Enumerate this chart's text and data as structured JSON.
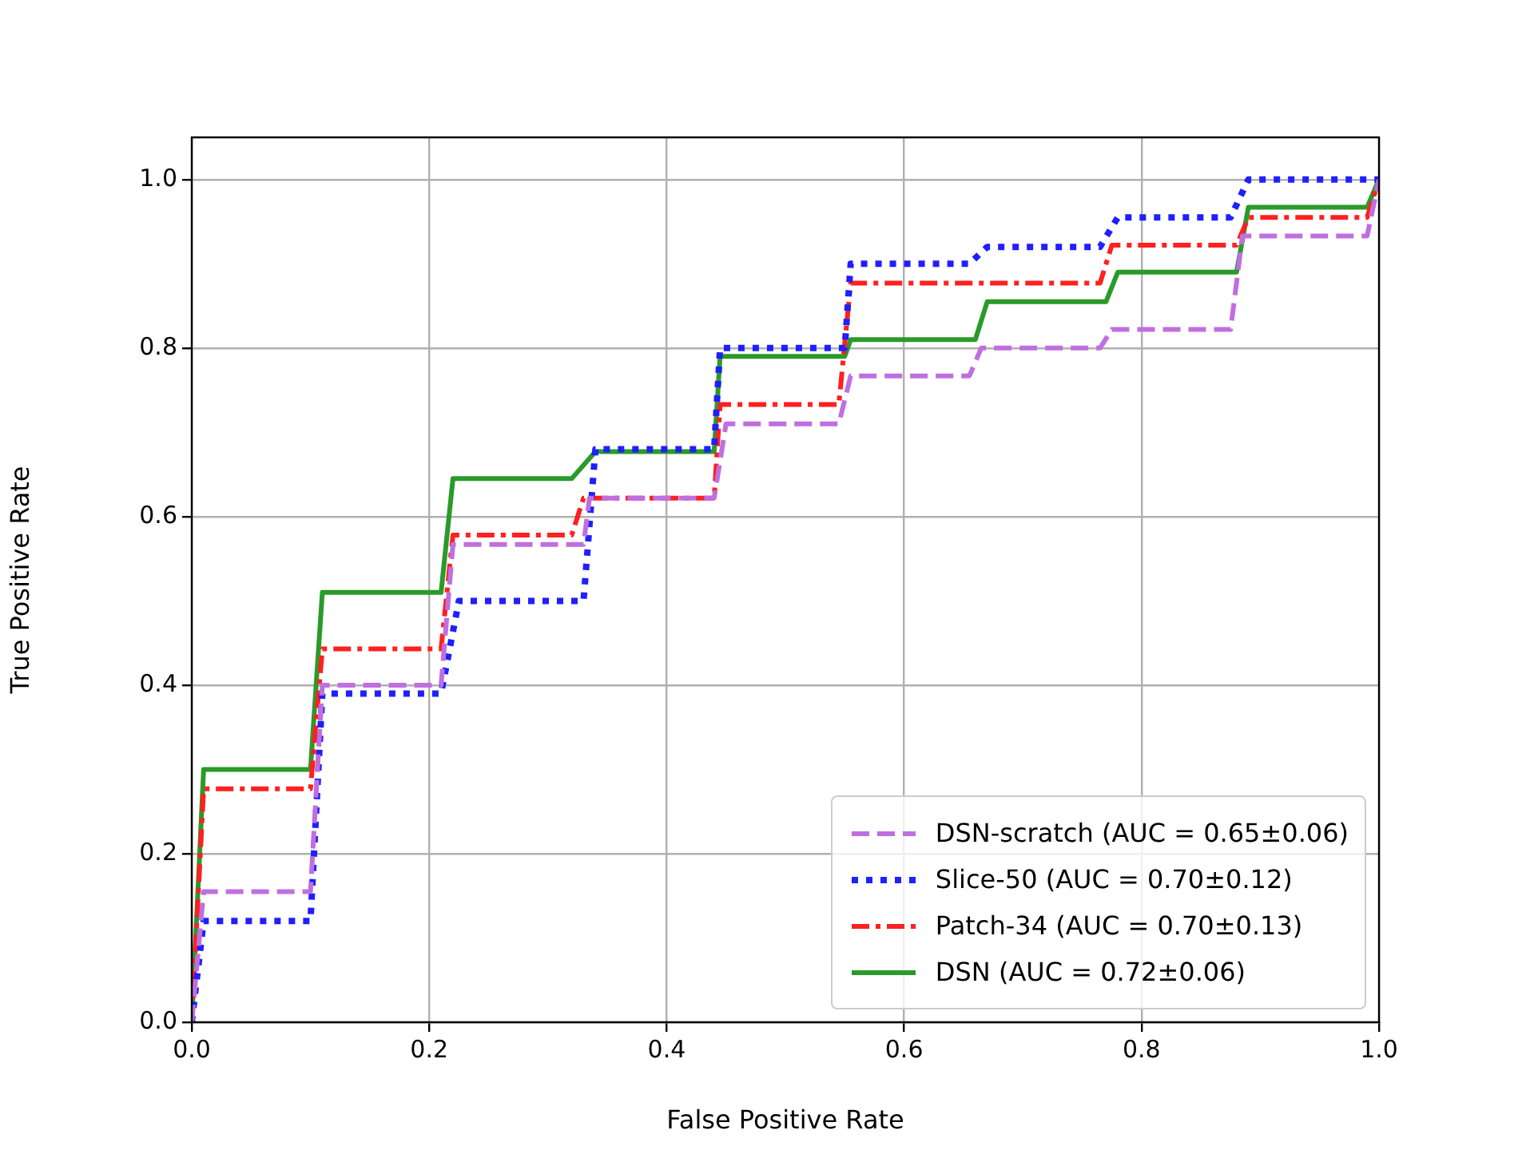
{
  "chart_data": {
    "type": "line",
    "xlabel": "False Positive Rate",
    "ylabel": "True Positive Rate",
    "xlim": [
      0,
      1
    ],
    "ylim": [
      0,
      1.05
    ],
    "xticks": [
      {
        "value": 0,
        "label": "0.0"
      },
      {
        "value": 0.2,
        "label": "0.2"
      },
      {
        "value": 0.4,
        "label": "0.4"
      },
      {
        "value": 0.6,
        "label": "0.6"
      },
      {
        "value": 0.8,
        "label": "0.8"
      },
      {
        "value": 1,
        "label": "1.0"
      }
    ],
    "yticks": [
      {
        "value": 0,
        "label": "0.0"
      },
      {
        "value": 0.2,
        "label": "0.2"
      },
      {
        "value": 0.4,
        "label": "0.4"
      },
      {
        "value": 0.6,
        "label": "0.6"
      },
      {
        "value": 0.8,
        "label": "0.8"
      },
      {
        "value": 1,
        "label": "1.0"
      }
    ],
    "grid": true,
    "legend": "bottom right",
    "marker": "none",
    "series": [
      {
        "name": "DSN-scratch (AUC = 0.65±0.06)",
        "color": "#bf6fdf",
        "line_style": "dashed",
        "x": [
          0,
          0.01,
          0.1,
          0.11,
          0.21,
          0.22,
          0.33,
          0.335,
          0.44,
          0.45,
          0.545,
          0.555,
          0.655,
          0.665,
          0.765,
          0.775,
          0.875,
          0.885,
          0.99,
          1
        ],
        "values": [
          0,
          0.155,
          0.155,
          0.4,
          0.4,
          0.567,
          0.567,
          0.622,
          0.622,
          0.71,
          0.71,
          0.767,
          0.767,
          0.8,
          0.8,
          0.822,
          0.822,
          0.933,
          0.933,
          1
        ]
      },
      {
        "name": "Slice-50 (AUC = 0.70±0.12)",
        "color": "#1f1fff",
        "line_style": "dotted",
        "x": [
          0,
          0.01,
          0.1,
          0.11,
          0.21,
          0.225,
          0.33,
          0.34,
          0.44,
          0.445,
          0.55,
          0.555,
          0.655,
          0.67,
          0.765,
          0.78,
          0.875,
          0.89,
          1
        ],
        "values": [
          0,
          0.12,
          0.12,
          0.39,
          0.39,
          0.5,
          0.5,
          0.68,
          0.68,
          0.8,
          0.8,
          0.9,
          0.9,
          0.92,
          0.92,
          0.955,
          0.955,
          1,
          1
        ]
      },
      {
        "name": "Patch-34 (AUC = 0.70±0.13)",
        "color": "#ff2020",
        "line_style": "dashdot",
        "x": [
          0,
          0.01,
          0.1,
          0.11,
          0.21,
          0.22,
          0.32,
          0.33,
          0.44,
          0.445,
          0.545,
          0.555,
          0.765,
          0.775,
          0.88,
          0.89,
          0.99,
          1
        ],
        "values": [
          0,
          0.277,
          0.277,
          0.443,
          0.443,
          0.578,
          0.578,
          0.622,
          0.622,
          0.733,
          0.733,
          0.877,
          0.877,
          0.922,
          0.922,
          0.955,
          0.955,
          1
        ]
      },
      {
        "name": "DSN (AUC = 0.72±0.06)",
        "color": "#2a9a2a",
        "line_style": "solid",
        "x": [
          0,
          0.01,
          0.1,
          0.11,
          0.21,
          0.22,
          0.32,
          0.34,
          0.44,
          0.445,
          0.55,
          0.555,
          0.66,
          0.67,
          0.77,
          0.78,
          0.88,
          0.89,
          0.99,
          1
        ],
        "values": [
          0,
          0.3,
          0.3,
          0.51,
          0.51,
          0.645,
          0.645,
          0.677,
          0.677,
          0.79,
          0.79,
          0.81,
          0.81,
          0.855,
          0.855,
          0.89,
          0.89,
          0.967,
          0.967,
          1
        ]
      }
    ]
  }
}
